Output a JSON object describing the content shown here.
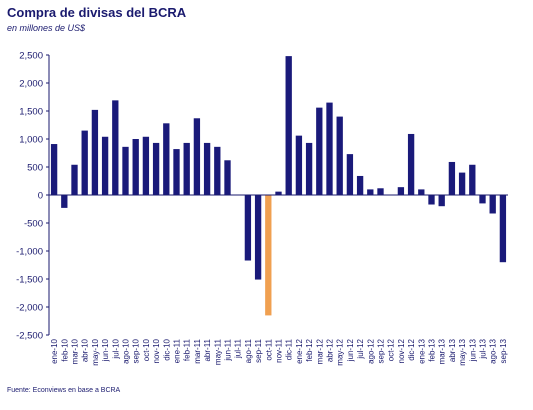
{
  "chart_data": {
    "type": "bar",
    "title": "Compra de divisas del BCRA",
    "subtitle": "en millones de US$",
    "source": "Fuente: Econviews en base a BCRA",
    "ylim": [
      -2500,
      2500
    ],
    "yticks": [
      2500,
      2000,
      1500,
      1000,
      500,
      0,
      -500,
      -1000,
      -1500,
      -2000,
      -2500
    ],
    "ytick_labels": [
      "2,500",
      "2,000",
      "1,500",
      "1,000",
      "500",
      "0",
      "-500",
      "-1,000",
      "-1,500",
      "-2,000",
      "-2,500"
    ],
    "grid": false,
    "bar_color": "#1a1a7a",
    "highlight_color": "#f0a050",
    "highlight_index": 21,
    "categories": [
      "ene-10",
      "feb-10",
      "mar-10",
      "abr-10",
      "may-10",
      "jun-10",
      "jul-10",
      "ago-10",
      "sep-10",
      "oct-10",
      "nov-10",
      "dic-10",
      "ene-11",
      "feb-11",
      "mar-11",
      "abr-11",
      "may-11",
      "jun-11",
      "jul-11",
      "ago-11",
      "sep-11",
      "oct-11",
      "nov-11",
      "dic-11",
      "ene-12",
      "feb-12",
      "mar-12",
      "abr-12",
      "may-12",
      "jun-12",
      "jul-12",
      "ago-12",
      "sep-12",
      "oct-12",
      "nov-12",
      "dic-12",
      "ene-13",
      "feb-13",
      "mar-13",
      "abr-13",
      "may-13",
      "jun-13",
      "jul-13",
      "ago-13",
      "sep-13"
    ],
    "values": [
      910,
      -230,
      540,
      1150,
      1520,
      1040,
      1690,
      860,
      1000,
      1040,
      930,
      1280,
      820,
      930,
      1370,
      930,
      860,
      620,
      0,
      -1170,
      -1510,
      -2150,
      60,
      2480,
      1060,
      930,
      1560,
      1650,
      1400,
      730,
      340,
      100,
      120,
      0,
      140,
      1090,
      100,
      -170,
      -200,
      590,
      400,
      540,
      -150,
      -330,
      -1200
    ]
  }
}
